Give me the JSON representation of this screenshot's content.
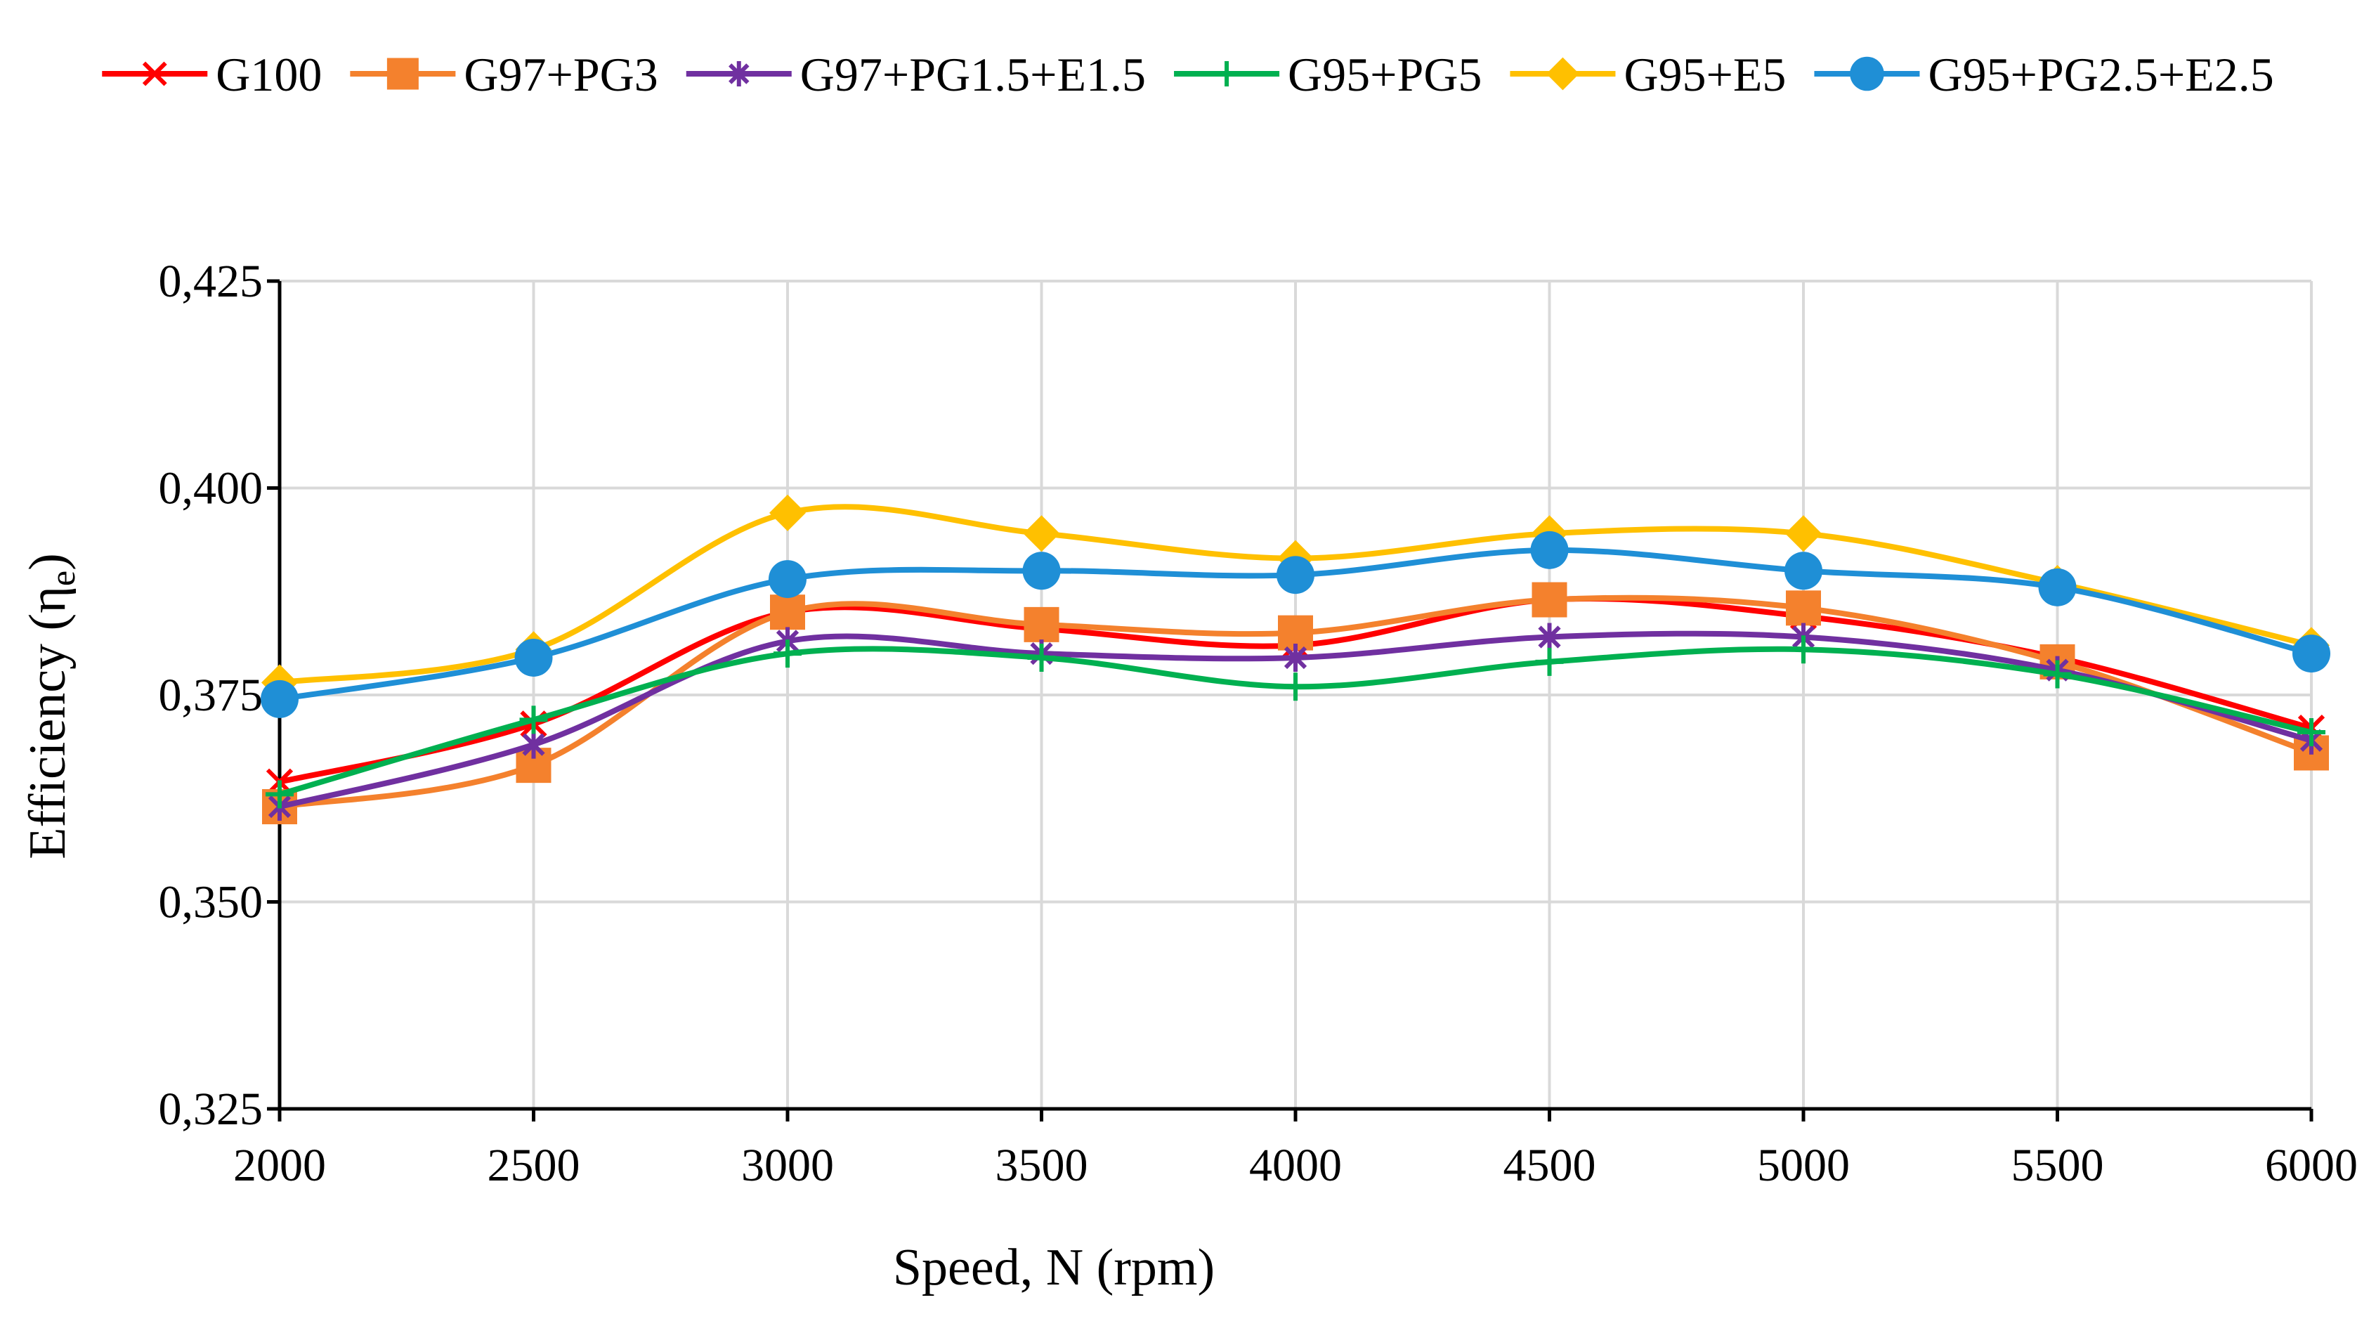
{
  "chart_data": {
    "type": "line",
    "title": "",
    "xlabel": "Speed, N (rpm)",
    "ylabel": "Efficiency (η",
    "ylabel_subscript": "e",
    "ylabel_close": ")",
    "x": [
      2000,
      2500,
      3000,
      3500,
      4000,
      4500,
      5000,
      5500,
      6000
    ],
    "x_tick_labels": [
      "2000",
      "2500",
      "3000",
      "3500",
      "4000",
      "4500",
      "5000",
      "5500",
      "6000"
    ],
    "ylim": [
      0.325,
      0.425
    ],
    "y_ticks": [
      0.325,
      0.35,
      0.375,
      0.4,
      0.425
    ],
    "y_tick_labels": [
      "0,325",
      "0,350",
      "0,375",
      "0,400",
      "0,425"
    ],
    "grid": true,
    "legend_position": "top",
    "series": [
      {
        "name": "G100",
        "color": "#ff0000",
        "marker": "x",
        "values": [
          0.3645,
          0.3715,
          0.385,
          0.383,
          0.381,
          0.3865,
          0.3845,
          0.3795,
          0.371
        ]
      },
      {
        "name": "G97+PG3",
        "color": "#f4812d",
        "marker": "square",
        "values": [
          0.3615,
          0.3665,
          0.385,
          0.3835,
          0.3825,
          0.3865,
          0.3855,
          0.379,
          0.368
        ]
      },
      {
        "name": "G97+PG1.5+E1.5",
        "color": "#7030a0",
        "marker": "asterisk",
        "values": [
          0.3615,
          0.369,
          0.3815,
          0.38,
          0.3795,
          0.382,
          0.382,
          0.378,
          0.3695
        ]
      },
      {
        "name": "G95+PG5",
        "color": "#00b050",
        "marker": "plus",
        "values": [
          0.363,
          0.372,
          0.38,
          0.3795,
          0.376,
          0.379,
          0.3805,
          0.3775,
          0.3705
        ]
      },
      {
        "name": "G95+E5",
        "color": "#ffc000",
        "marker": "diamond",
        "values": [
          0.3765,
          0.3805,
          0.397,
          0.3945,
          0.3915,
          0.3945,
          0.3945,
          0.3885,
          0.381
        ]
      },
      {
        "name": "G95+PG2.5+E2.5",
        "color": "#1f8fd6",
        "marker": "circle",
        "values": [
          0.3745,
          0.3795,
          0.389,
          0.39,
          0.3895,
          0.3925,
          0.39,
          0.388,
          0.38
        ]
      }
    ]
  }
}
